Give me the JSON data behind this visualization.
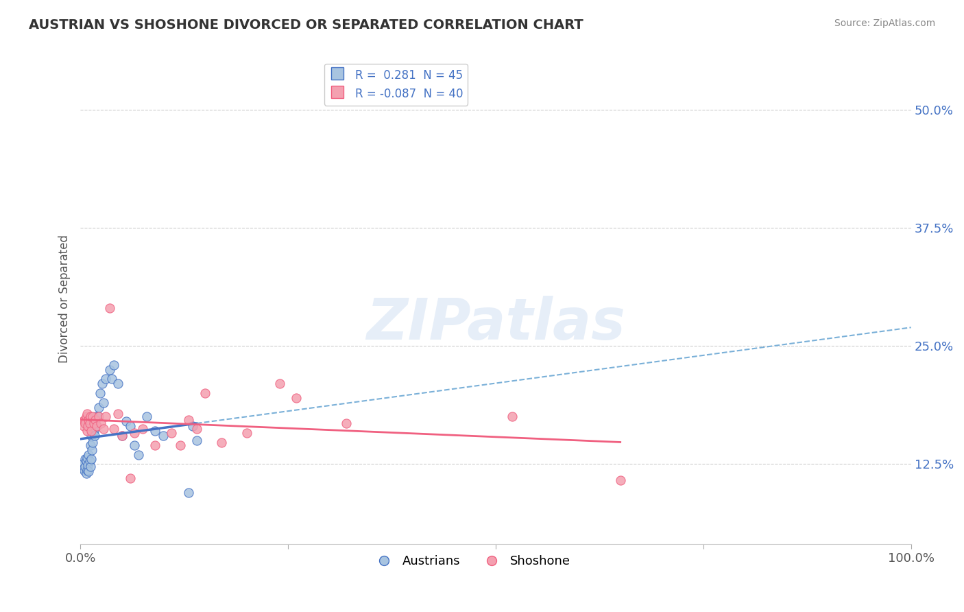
{
  "title": "AUSTRIAN VS SHOSHONE DIVORCED OR SEPARATED CORRELATION CHART",
  "source": "Source: ZipAtlas.com",
  "ylabel": "Divorced or Separated",
  "legend_r_austrians": "0.281",
  "legend_n_austrians": "45",
  "legend_r_shoshone": "-0.087",
  "legend_n_shoshone": "40",
  "ytick_labels": [
    "12.5%",
    "25.0%",
    "37.5%",
    "50.0%"
  ],
  "ytick_values": [
    0.125,
    0.25,
    0.375,
    0.5
  ],
  "xlim": [
    0.0,
    1.0
  ],
  "ylim": [
    0.04,
    0.56
  ],
  "austrian_color": "#a8c4e0",
  "shoshone_color": "#f4a0b0",
  "austrian_line_color": "#4472c4",
  "shoshone_line_color": "#f06080",
  "trend_ext_color": "#7ab0d8",
  "watermark": "ZIPatlas",
  "austrians_x": [
    0.003,
    0.004,
    0.005,
    0.006,
    0.006,
    0.007,
    0.007,
    0.008,
    0.008,
    0.009,
    0.01,
    0.01,
    0.011,
    0.012,
    0.012,
    0.013,
    0.013,
    0.014,
    0.015,
    0.016,
    0.017,
    0.018,
    0.019,
    0.02,
    0.021,
    0.022,
    0.024,
    0.026,
    0.028,
    0.03,
    0.035,
    0.038,
    0.04,
    0.045,
    0.05,
    0.055,
    0.06,
    0.065,
    0.07,
    0.08,
    0.09,
    0.1,
    0.13,
    0.135,
    0.14
  ],
  "austrians_y": [
    0.125,
    0.12,
    0.118,
    0.122,
    0.13,
    0.115,
    0.128,
    0.119,
    0.132,
    0.124,
    0.117,
    0.135,
    0.128,
    0.122,
    0.145,
    0.13,
    0.155,
    0.14,
    0.148,
    0.16,
    0.155,
    0.168,
    0.175,
    0.165,
    0.175,
    0.185,
    0.2,
    0.21,
    0.19,
    0.215,
    0.225,
    0.215,
    0.23,
    0.21,
    0.155,
    0.17,
    0.165,
    0.145,
    0.135,
    0.175,
    0.16,
    0.155,
    0.095,
    0.165,
    0.15
  ],
  "shoshone_x": [
    0.003,
    0.004,
    0.005,
    0.006,
    0.007,
    0.008,
    0.008,
    0.009,
    0.01,
    0.011,
    0.012,
    0.013,
    0.015,
    0.016,
    0.018,
    0.02,
    0.022,
    0.025,
    0.028,
    0.03,
    0.035,
    0.04,
    0.045,
    0.05,
    0.06,
    0.065,
    0.075,
    0.09,
    0.11,
    0.12,
    0.13,
    0.14,
    0.15,
    0.17,
    0.2,
    0.24,
    0.26,
    0.32,
    0.52,
    0.65
  ],
  "shoshone_y": [
    0.17,
    0.165,
    0.172,
    0.168,
    0.175,
    0.16,
    0.178,
    0.165,
    0.172,
    0.168,
    0.175,
    0.16,
    0.175,
    0.168,
    0.172,
    0.165,
    0.175,
    0.168,
    0.162,
    0.175,
    0.29,
    0.162,
    0.178,
    0.155,
    0.11,
    0.158,
    0.162,
    0.145,
    0.158,
    0.145,
    0.172,
    0.162,
    0.2,
    0.148,
    0.158,
    0.21,
    0.195,
    0.168,
    0.175,
    0.108
  ]
}
